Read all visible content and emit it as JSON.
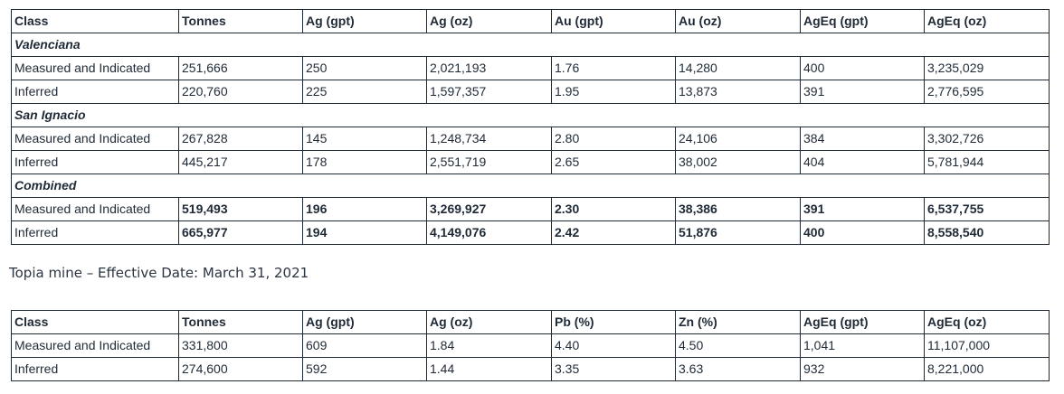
{
  "table1": {
    "header": [
      "Class",
      "Tonnes",
      "Ag (gpt)",
      "Ag (oz)",
      "Au (gpt)",
      "Au (oz)",
      "AgEq (gpt)",
      "AgEq (oz)"
    ],
    "sections": [
      {
        "title": "Valenciana",
        "rows": [
          [
            "Measured and Indicated",
            "251,666",
            "250",
            "2,021,193",
            "1.76",
            "14,280",
            "400",
            "3,235,029"
          ],
          [
            "Inferred",
            "220,760",
            "225",
            "1,597,357",
            "1.95",
            "13,873",
            "391",
            "2,776,595"
          ]
        ]
      },
      {
        "title": "San Ignacio",
        "rows": [
          [
            "Measured and Indicated",
            "267,828",
            "145",
            "1,248,734",
            "2.80",
            "24,106",
            "384",
            "3,302,726"
          ],
          [
            "Inferred",
            "445,217",
            "178",
            "2,551,719",
            "2.65",
            "38,002",
            "404",
            "5,781,944"
          ]
        ]
      },
      {
        "title": "Combined",
        "rows": [
          [
            "Measured and Indicated",
            "519,493",
            "196",
            "3,269,927",
            "2.30",
            "38,386",
            "391",
            "6,537,755"
          ],
          [
            "Inferred",
            "665,977",
            "194",
            "4,149,076",
            "2.42",
            "51,876",
            "400",
            "8,558,540"
          ]
        ]
      }
    ]
  },
  "caption": "Topia mine – Effective Date: March 31, 2021",
  "table2": {
    "header": [
      "Class",
      "Tonnes",
      "Ag (gpt)",
      "Ag (oz)",
      "Pb (%)",
      "Zn (%)",
      "AgEq (gpt)",
      "AgEq (oz)"
    ],
    "rows": [
      [
        "Measured and Indicated",
        "331,800",
        "609",
        "1.84",
        "4.40",
        "4.50",
        "1,041",
        "11,107,000"
      ],
      [
        "Inferred",
        "274,600",
        "592",
        "1.44",
        "3.35",
        "3.63",
        "932",
        "8,221,000"
      ]
    ]
  }
}
